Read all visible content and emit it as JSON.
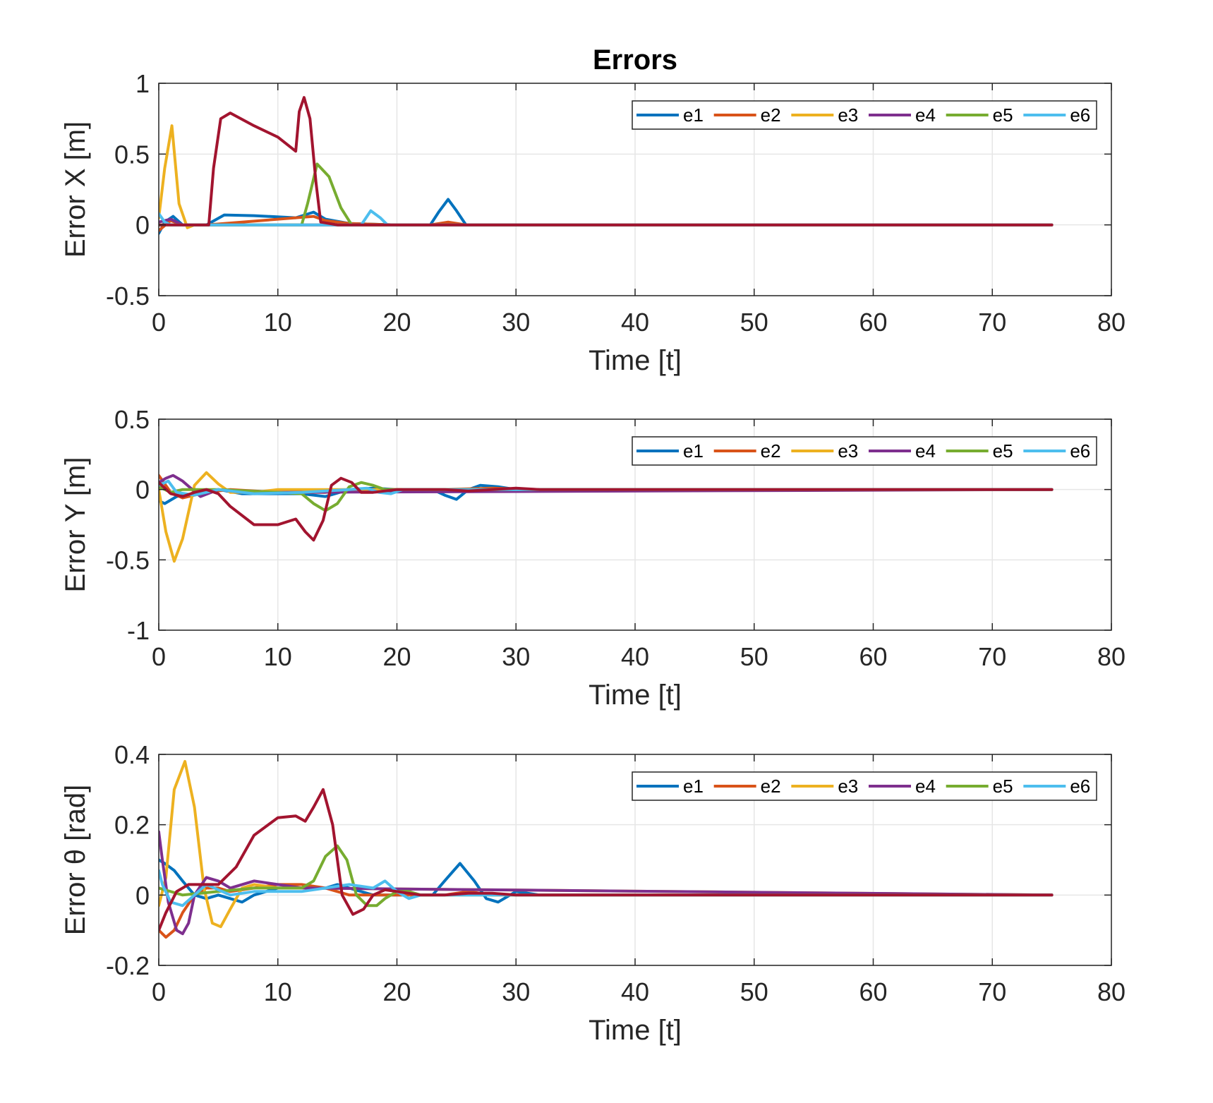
{
  "chart_data": [
    {
      "type": "line",
      "title": "Errors",
      "xlabel": "Time [t]",
      "ylabel": "Error X [m]",
      "xlim": [
        0,
        80
      ],
      "ylim": [
        -0.5,
        1
      ],
      "xticks": [
        "0",
        "10",
        "20",
        "30",
        "40",
        "50",
        "60",
        "70",
        "80"
      ],
      "yticks": [
        "-0.5",
        "0",
        "0.5",
        "1"
      ],
      "grid": true,
      "legend": "top-right",
      "series": [
        {
          "name": "e1",
          "color": "#0072BD",
          "x": [
            0,
            0.5,
            1.2,
            2,
            4,
            5.5,
            8,
            11.5,
            13,
            14,
            16,
            18,
            20,
            22.8,
            23.5,
            24.3,
            25,
            25.8,
            28,
            75
          ],
          "y": [
            -0.06,
            0.02,
            0.06,
            0.0,
            0.0,
            0.07,
            0.065,
            0.05,
            0.09,
            0.04,
            0.01,
            0.005,
            0.0,
            0.0,
            0.09,
            0.18,
            0.1,
            0.0,
            0.0,
            0.0
          ]
        },
        {
          "name": "e2",
          "color": "#D95319",
          "x": [
            0,
            1,
            2,
            4,
            13,
            14,
            16,
            20,
            22.8,
            24.3,
            25.8,
            28,
            75
          ],
          "y": [
            -0.04,
            0.03,
            0.0,
            0.0,
            0.06,
            0.03,
            0.01,
            0.0,
            0.0,
            0.02,
            0.0,
            0.0,
            0.0
          ]
        },
        {
          "name": "e3",
          "color": "#EDB120",
          "x": [
            0,
            0.5,
            1.1,
            1.7,
            2.4,
            3,
            4,
            75
          ],
          "y": [
            0.05,
            0.4,
            0.7,
            0.15,
            -0.02,
            0.0,
            0.0,
            0.0
          ]
        },
        {
          "name": "e4",
          "color": "#7E2F8E",
          "x": [
            0,
            1,
            2,
            4,
            20,
            75
          ],
          "y": [
            0.02,
            0.04,
            0.0,
            0.0,
            0.0,
            0.0
          ]
        },
        {
          "name": "e5",
          "color": "#77AC30",
          "x": [
            0,
            12,
            12.5,
            13.3,
            14.3,
            15.3,
            16.2,
            17,
            20,
            75
          ],
          "y": [
            0.0,
            0.0,
            0.15,
            0.43,
            0.34,
            0.12,
            0.0,
            0.0,
            0.0,
            0.0
          ]
        },
        {
          "name": "e6",
          "color": "#4DBEEE",
          "x": [
            0,
            0.5,
            1,
            17,
            17.8,
            18.6,
            19.2,
            20,
            75
          ],
          "y": [
            0.08,
            0.02,
            0.0,
            0.0,
            0.1,
            0.05,
            0.0,
            0.0,
            0.0
          ]
        },
        {
          "name": "",
          "color": "#A2142F",
          "x": [
            0,
            4.2,
            4.6,
            5.2,
            6,
            8,
            10,
            11.5,
            11.8,
            12.2,
            12.7,
            13.2,
            13.6,
            15,
            75
          ],
          "y": [
            0.0,
            0.0,
            0.4,
            0.75,
            0.79,
            0.7,
            0.62,
            0.52,
            0.8,
            0.9,
            0.75,
            0.3,
            0.02,
            0.0,
            0.0
          ]
        }
      ]
    },
    {
      "type": "line",
      "title": "",
      "xlabel": "Time [t]",
      "ylabel": "Error Y [m]",
      "xlim": [
        0,
        80
      ],
      "ylim": [
        -1,
        0.5
      ],
      "xticks": [
        "0",
        "10",
        "20",
        "30",
        "40",
        "50",
        "60",
        "70",
        "80"
      ],
      "yticks": [
        "-1",
        "-0.5",
        "0",
        "0.5"
      ],
      "grid": true,
      "legend": "top-right",
      "series": [
        {
          "name": "e1",
          "color": "#0072BD",
          "x": [
            0,
            0.5,
            1.5,
            3,
            5,
            7,
            10,
            12,
            14,
            16,
            18,
            20,
            23,
            24,
            25,
            26,
            27,
            28.5,
            30,
            75
          ],
          "y": [
            -0.08,
            -0.1,
            -0.05,
            -0.03,
            0.0,
            -0.03,
            -0.03,
            -0.03,
            -0.05,
            0.0,
            0.01,
            0.0,
            0.0,
            -0.04,
            -0.07,
            0.0,
            0.03,
            0.02,
            0.0,
            0.0
          ]
        },
        {
          "name": "e2",
          "color": "#D95319",
          "x": [
            0,
            1,
            2,
            4,
            6,
            10,
            14,
            16,
            20,
            24,
            28,
            32,
            75
          ],
          "y": [
            0.1,
            -0.02,
            -0.06,
            -0.02,
            0.0,
            -0.02,
            -0.02,
            0.0,
            0.0,
            0.0,
            0.01,
            0.0,
            0.0
          ]
        },
        {
          "name": "e3",
          "color": "#EDB120",
          "x": [
            0,
            0.6,
            1.3,
            2,
            3,
            4,
            5,
            6,
            8,
            10,
            75
          ],
          "y": [
            0.0,
            -0.3,
            -0.51,
            -0.35,
            0.03,
            0.12,
            0.04,
            -0.02,
            -0.02,
            0.0,
            0.0
          ]
        },
        {
          "name": "e4",
          "color": "#7E2F8E",
          "x": [
            0,
            0.6,
            1.2,
            2,
            3.5,
            5,
            7,
            10,
            75
          ],
          "y": [
            0.05,
            0.08,
            0.1,
            0.06,
            -0.05,
            0.0,
            -0.02,
            -0.02,
            0.0
          ]
        },
        {
          "name": "e5",
          "color": "#77AC30",
          "x": [
            0,
            1,
            2,
            5,
            10,
            12,
            13,
            14,
            15,
            16,
            17,
            18,
            19,
            20,
            75
          ],
          "y": [
            0.02,
            -0.02,
            0.0,
            0.0,
            -0.02,
            -0.03,
            -0.1,
            -0.15,
            -0.1,
            0.02,
            0.05,
            0.03,
            0.0,
            0.0,
            0.0
          ]
        },
        {
          "name": "e6",
          "color": "#4DBEEE",
          "x": [
            0,
            0.8,
            1.5,
            3,
            5,
            8,
            12,
            16,
            17.5,
            18.5,
            19.5,
            20.5,
            75
          ],
          "y": [
            0.03,
            0.06,
            -0.02,
            -0.04,
            0.0,
            -0.03,
            -0.02,
            0.0,
            0.01,
            -0.02,
            -0.03,
            0.0,
            0.0
          ]
        },
        {
          "name": "",
          "color": "#A2142F",
          "x": [
            0,
            1,
            2,
            3,
            4,
            5,
            6,
            8,
            10,
            11.5,
            12.3,
            13,
            13.8,
            14.5,
            15.3,
            16.2,
            17,
            18,
            20,
            22,
            24,
            26,
            28,
            30,
            32,
            75
          ],
          "y": [
            0.05,
            -0.03,
            -0.05,
            -0.02,
            0.0,
            -0.03,
            -0.12,
            -0.25,
            -0.25,
            -0.21,
            -0.3,
            -0.36,
            -0.22,
            0.03,
            0.08,
            0.05,
            -0.02,
            -0.02,
            0.0,
            0.0,
            0.0,
            -0.01,
            0.0,
            0.01,
            0.0,
            0.0
          ]
        }
      ]
    },
    {
      "type": "line",
      "title": "",
      "xlabel": "Time [t]",
      "ylabel": "Error θ [rad]",
      "xlim": [
        0,
        80
      ],
      "ylim": [
        -0.2,
        0.4
      ],
      "xticks": [
        "0",
        "10",
        "20",
        "30",
        "40",
        "50",
        "60",
        "70",
        "80"
      ],
      "yticks": [
        "-0.2",
        "0",
        "0.2",
        "0.4"
      ],
      "grid": true,
      "legend": "top-right",
      "series": [
        {
          "name": "e1",
          "color": "#0072BD",
          "x": [
            0,
            0.5,
            1.3,
            2,
            3,
            4,
            5,
            6,
            7,
            8,
            10,
            12,
            14,
            15,
            16,
            18,
            20,
            22,
            23,
            24,
            25.3,
            26.5,
            27.5,
            28.5,
            30,
            32,
            75
          ],
          "y": [
            0.1,
            0.09,
            0.07,
            0.04,
            0.0,
            -0.01,
            0.0,
            -0.01,
            -0.02,
            0.0,
            0.02,
            0.02,
            0.02,
            0.03,
            0.02,
            0.0,
            0.0,
            0.0,
            0.0,
            0.04,
            0.09,
            0.04,
            -0.01,
            -0.02,
            0.01,
            0.0,
            0.0
          ]
        },
        {
          "name": "e2",
          "color": "#D95319",
          "x": [
            0,
            0.6,
            1.3,
            2,
            3,
            4,
            5,
            6,
            8,
            10,
            12,
            14,
            16,
            18,
            20,
            22,
            24,
            26,
            28,
            30,
            75
          ],
          "y": [
            -0.1,
            -0.12,
            -0.1,
            -0.05,
            0.0,
            0.02,
            0.02,
            0.01,
            0.02,
            0.03,
            0.03,
            0.02,
            0.0,
            0.0,
            0.0,
            0.0,
            0.0,
            0.01,
            0.0,
            0.0,
            0.0
          ]
        },
        {
          "name": "e3",
          "color": "#EDB120",
          "x": [
            0,
            0.6,
            1.3,
            2.2,
            3,
            3.8,
            4.5,
            5.2,
            6,
            7,
            8,
            10,
            12,
            75
          ],
          "y": [
            -0.03,
            0.05,
            0.3,
            0.38,
            0.25,
            0.02,
            -0.08,
            -0.09,
            -0.04,
            0.02,
            0.03,
            0.02,
            0.02,
            0.0
          ]
        },
        {
          "name": "e4",
          "color": "#7E2F8E",
          "x": [
            0,
            0.3,
            0.8,
            1.5,
            2,
            2.5,
            3,
            4,
            5,
            6,
            7,
            8,
            10,
            12,
            75
          ],
          "y": [
            0.18,
            0.1,
            -0.02,
            -0.1,
            -0.11,
            -0.08,
            0.0,
            0.05,
            0.04,
            0.02,
            0.03,
            0.04,
            0.03,
            0.02,
            0.0
          ]
        },
        {
          "name": "e5",
          "color": "#77AC30",
          "x": [
            0,
            2,
            5,
            8,
            12,
            13,
            14,
            15,
            15.8,
            16.6,
            17.5,
            18.3,
            19,
            20,
            21,
            22,
            75
          ],
          "y": [
            0.02,
            0.0,
            0.01,
            0.02,
            0.02,
            0.04,
            0.11,
            0.14,
            0.1,
            0.0,
            -0.03,
            -0.03,
            -0.01,
            0.01,
            0.01,
            0.0,
            0.0
          ]
        },
        {
          "name": "e6",
          "color": "#4DBEEE",
          "x": [
            0,
            0.3,
            1,
            2,
            3,
            4,
            6,
            8,
            10,
            12,
            14,
            16,
            18,
            19,
            20,
            21,
            22,
            75
          ],
          "y": [
            0.07,
            0.03,
            -0.02,
            -0.03,
            0.0,
            0.03,
            0.0,
            0.01,
            0.01,
            0.01,
            0.02,
            0.03,
            0.02,
            0.04,
            0.01,
            -0.01,
            0.0,
            0.0
          ]
        },
        {
          "name": "",
          "color": "#A2142F",
          "x": [
            0,
            0.6,
            1.5,
            2.5,
            3.5,
            5,
            6.5,
            8,
            10,
            11.5,
            12.3,
            13,
            13.8,
            14.6,
            15.4,
            16.3,
            17.2,
            18,
            19,
            20,
            22,
            24,
            26,
            28,
            30,
            75
          ],
          "y": [
            -0.1,
            -0.05,
            0.01,
            0.03,
            0.03,
            0.03,
            0.08,
            0.17,
            0.22,
            0.225,
            0.21,
            0.25,
            0.3,
            0.2,
            0.0,
            -0.055,
            -0.04,
            0.0,
            0.015,
            0.01,
            0.0,
            0.0,
            0.005,
            0.005,
            0.0,
            0.0
          ]
        }
      ]
    }
  ]
}
